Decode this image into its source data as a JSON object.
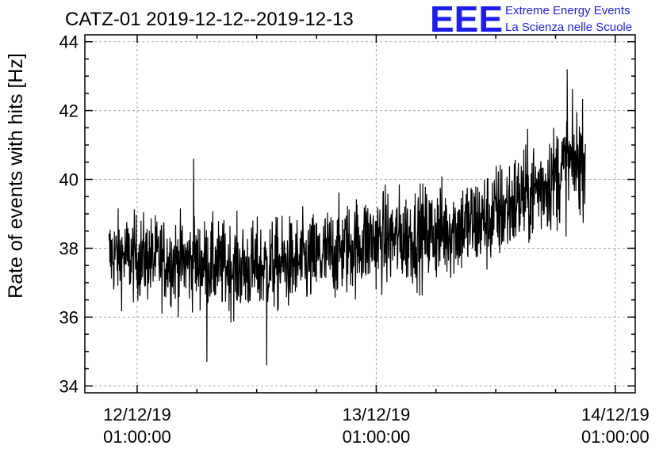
{
  "logo": {
    "mark": "EEE",
    "line1": "Extreme Energy Events",
    "line2": "La Scienza nelle Scuole",
    "color": "#1d1df0"
  },
  "chart_data": {
    "type": "line",
    "title": "CATZ-01 2019-12-12--2019-12-13",
    "ylabel": "Rate of events with hits [Hz]",
    "xlabel": "",
    "ylim": [
      33.8,
      44.2
    ],
    "yticks": [
      34,
      36,
      38,
      40,
      42,
      44
    ],
    "xlim": [
      "2019-12-11 19:45",
      "2019-12-14 03:00"
    ],
    "xticks": [
      {
        "date": "12/12/19",
        "time": "01:00:00",
        "x": "2019-12-12 01:00"
      },
      {
        "date": "13/12/19",
        "time": "01:00:00",
        "x": "2019-12-13 01:00"
      },
      {
        "date": "14/12/19",
        "time": "01:00:00",
        "x": "2019-12-14 01:00"
      }
    ],
    "grid": true,
    "series": [
      {
        "color": "#000000",
        "x_start": "2019-12-11 22:10",
        "x_end": "2019-12-13 22:00",
        "trend": [
          {
            "x": "2019-12-11 22:10",
            "y": 37.8
          },
          {
            "x": "2019-12-12 06:00",
            "y": 37.6
          },
          {
            "x": "2019-12-12 12:00",
            "y": 37.4
          },
          {
            "x": "2019-12-12 18:00",
            "y": 37.6
          },
          {
            "x": "2019-12-13 00:00",
            "y": 38.2
          },
          {
            "x": "2019-12-13 06:00",
            "y": 38.4
          },
          {
            "x": "2019-12-13 12:00",
            "y": 38.8
          },
          {
            "x": "2019-12-13 17:00",
            "y": 39.7
          },
          {
            "x": "2019-12-13 22:00",
            "y": 40.7
          }
        ],
        "noise_amplitude": 0.6,
        "extremes": [
          {
            "x": "2019-12-12 08:00",
            "y": 34.7
          },
          {
            "x": "2019-12-12 14:00",
            "y": 34.6
          },
          {
            "x": "2019-12-12 06:40",
            "y": 40.6
          },
          {
            "x": "2019-12-13 20:10",
            "y": 43.2
          }
        ]
      }
    ]
  }
}
